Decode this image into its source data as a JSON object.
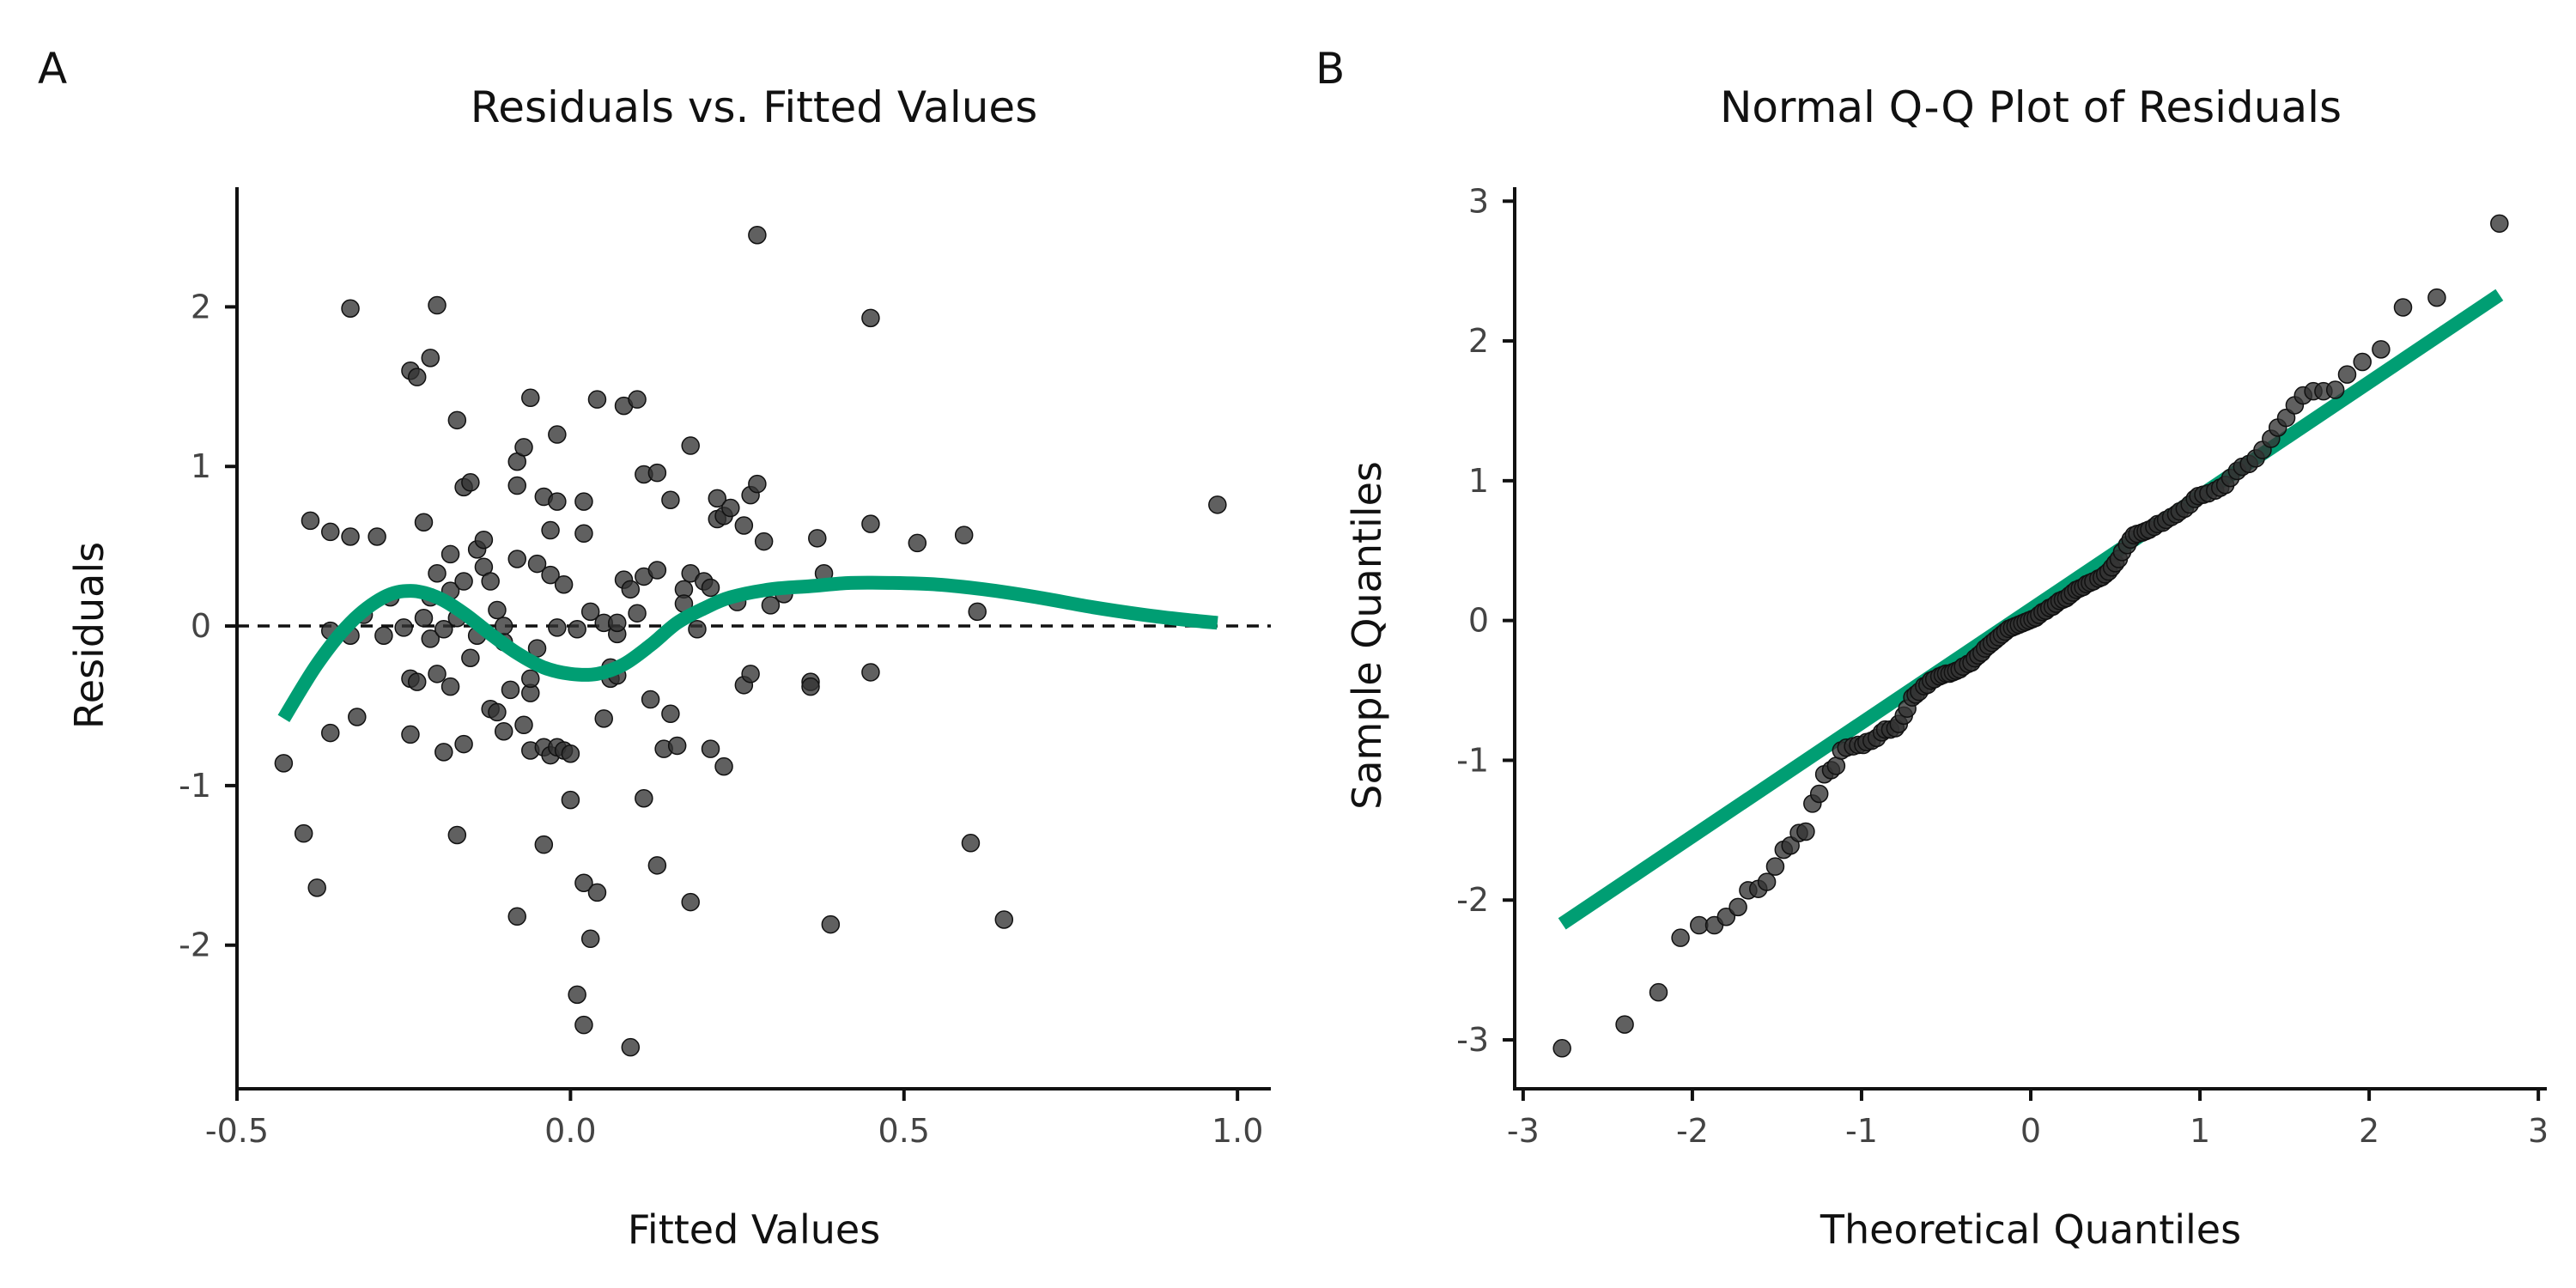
{
  "chart_data": [
    {
      "panel": "A",
      "type": "scatter",
      "title": "Residuals vs. Fitted Values",
      "xlabel": "Fitted Values",
      "ylabel": "Residuals",
      "xlim": [
        -0.5,
        1.05
      ],
      "ylim": [
        -2.9,
        2.75
      ],
      "xticks": [
        -0.5,
        0.0,
        0.5,
        1.0
      ],
      "xtick_labels": [
        "-0.5",
        "0.0",
        "0.5",
        "1.0"
      ],
      "yticks": [
        -2,
        -1,
        0,
        1,
        2
      ],
      "ytick_labels": [
        "-2",
        "-1",
        "0",
        "1",
        "2"
      ],
      "reference_line": {
        "y": 0,
        "style": "dashed"
      },
      "grid": false,
      "point_color": "#333333",
      "smooth_color": "#009E73",
      "points": [
        [
          -0.43,
          -0.86
        ],
        [
          -0.4,
          -1.3
        ],
        [
          -0.39,
          0.66
        ],
        [
          -0.38,
          -1.64
        ],
        [
          -0.36,
          -0.03
        ],
        [
          -0.36,
          -0.67
        ],
        [
          -0.36,
          0.59
        ],
        [
          -0.33,
          1.99
        ],
        [
          -0.33,
          0.56
        ],
        [
          -0.33,
          -0.06
        ],
        [
          -0.32,
          -0.57
        ],
        [
          -0.31,
          0.07
        ],
        [
          -0.29,
          0.56
        ],
        [
          -0.28,
          -0.06
        ],
        [
          -0.27,
          0.18
        ],
        [
          -0.25,
          -0.01
        ],
        [
          -0.24,
          -0.33
        ],
        [
          -0.24,
          1.6
        ],
        [
          -0.24,
          -0.68
        ],
        [
          -0.23,
          1.56
        ],
        [
          -0.23,
          -0.35
        ],
        [
          -0.22,
          0.65
        ],
        [
          -0.22,
          0.05
        ],
        [
          -0.21,
          1.68
        ],
        [
          -0.21,
          0.18
        ],
        [
          -0.21,
          -0.08
        ],
        [
          -0.2,
          2.01
        ],
        [
          -0.2,
          0.33
        ],
        [
          -0.2,
          -0.3
        ],
        [
          -0.19,
          -0.02
        ],
        [
          -0.19,
          -0.79
        ],
        [
          -0.18,
          0.22
        ],
        [
          -0.18,
          -0.38
        ],
        [
          -0.18,
          0.45
        ],
        [
          -0.17,
          1.29
        ],
        [
          -0.17,
          -1.31
        ],
        [
          -0.17,
          0.05
        ],
        [
          -0.16,
          -0.74
        ],
        [
          -0.16,
          0.28
        ],
        [
          -0.16,
          0.87
        ],
        [
          -0.15,
          0.9
        ],
        [
          -0.15,
          -0.2
        ],
        [
          -0.14,
          -0.06
        ],
        [
          -0.14,
          0.48
        ],
        [
          -0.13,
          0.37
        ],
        [
          -0.13,
          0.54
        ],
        [
          -0.12,
          0.28
        ],
        [
          -0.12,
          -0.52
        ],
        [
          -0.11,
          -0.54
        ],
        [
          -0.11,
          0.1
        ],
        [
          -0.1,
          -0.1
        ],
        [
          -0.1,
          0.0
        ],
        [
          -0.1,
          -0.66
        ],
        [
          -0.09,
          -0.4
        ],
        [
          -0.08,
          0.88
        ],
        [
          -0.08,
          -1.82
        ],
        [
          -0.08,
          0.42
        ],
        [
          -0.08,
          1.03
        ],
        [
          -0.07,
          1.12
        ],
        [
          -0.07,
          -0.62
        ],
        [
          -0.06,
          -0.42
        ],
        [
          -0.06,
          -0.78
        ],
        [
          -0.06,
          -0.33
        ],
        [
          -0.06,
          1.43
        ],
        [
          -0.05,
          0.39
        ],
        [
          -0.05,
          -0.14
        ],
        [
          -0.04,
          0.81
        ],
        [
          -0.04,
          -1.37
        ],
        [
          -0.04,
          -0.76
        ],
        [
          -0.03,
          -0.81
        ],
        [
          -0.03,
          0.6
        ],
        [
          -0.03,
          0.32
        ],
        [
          -0.02,
          -0.76
        ],
        [
          -0.02,
          -0.01
        ],
        [
          -0.02,
          1.2
        ],
        [
          -0.02,
          0.78
        ],
        [
          -0.01,
          0.26
        ],
        [
          -0.01,
          -0.78
        ],
        [
          0.0,
          -0.8
        ],
        [
          0.0,
          -1.09
        ],
        [
          0.01,
          -2.31
        ],
        [
          0.01,
          -0.02
        ],
        [
          0.02,
          0.58
        ],
        [
          0.02,
          -1.61
        ],
        [
          0.02,
          -2.5
        ],
        [
          0.02,
          0.78
        ],
        [
          0.03,
          -1.96
        ],
        [
          0.03,
          0.09
        ],
        [
          0.04,
          -1.67
        ],
        [
          0.04,
          1.42
        ],
        [
          0.05,
          -0.58
        ],
        [
          0.05,
          0.02
        ],
        [
          0.06,
          -0.33
        ],
        [
          0.06,
          -0.26
        ],
        [
          0.07,
          -0.05
        ],
        [
          0.07,
          -0.31
        ],
        [
          0.07,
          0.02
        ],
        [
          0.08,
          1.38
        ],
        [
          0.08,
          0.29
        ],
        [
          0.09,
          -2.64
        ],
        [
          0.09,
          0.23
        ],
        [
          0.1,
          1.42
        ],
        [
          0.1,
          0.08
        ],
        [
          0.11,
          0.31
        ],
        [
          0.11,
          -1.08
        ],
        [
          0.11,
          0.95
        ],
        [
          0.12,
          -0.46
        ],
        [
          0.13,
          -1.5
        ],
        [
          0.13,
          0.96
        ],
        [
          0.13,
          0.35
        ],
        [
          0.14,
          -0.77
        ],
        [
          0.15,
          0.79
        ],
        [
          0.15,
          -0.55
        ],
        [
          0.16,
          -0.75
        ],
        [
          0.17,
          0.23
        ],
        [
          0.17,
          0.14
        ],
        [
          0.18,
          1.13
        ],
        [
          0.18,
          -1.73
        ],
        [
          0.18,
          0.33
        ],
        [
          0.19,
          -0.02
        ],
        [
          0.2,
          0.28
        ],
        [
          0.21,
          -0.77
        ],
        [
          0.21,
          0.24
        ],
        [
          0.22,
          0.67
        ],
        [
          0.22,
          0.8
        ],
        [
          0.23,
          -0.88
        ],
        [
          0.23,
          0.69
        ],
        [
          0.24,
          0.74
        ],
        [
          0.25,
          0.15
        ],
        [
          0.26,
          -0.37
        ],
        [
          0.26,
          0.63
        ],
        [
          0.27,
          -0.3
        ],
        [
          0.27,
          0.82
        ],
        [
          0.28,
          0.89
        ],
        [
          0.28,
          2.45
        ],
        [
          0.29,
          0.53
        ],
        [
          0.3,
          0.13
        ],
        [
          0.32,
          0.2
        ],
        [
          0.36,
          -0.35
        ],
        [
          0.36,
          -0.38
        ],
        [
          0.37,
          0.55
        ],
        [
          0.38,
          0.33
        ],
        [
          0.39,
          -1.87
        ],
        [
          0.45,
          0.64
        ],
        [
          0.45,
          -0.29
        ],
        [
          0.45,
          1.93
        ],
        [
          0.52,
          0.52
        ],
        [
          0.59,
          0.57
        ],
        [
          0.6,
          -1.36
        ],
        [
          0.61,
          0.09
        ],
        [
          0.65,
          -1.84
        ],
        [
          0.97,
          0.76
        ]
      ],
      "smooth_line": [
        [
          -0.43,
          -0.58
        ],
        [
          -0.38,
          -0.24
        ],
        [
          -0.33,
          0.02
        ],
        [
          -0.28,
          0.18
        ],
        [
          -0.24,
          0.22
        ],
        [
          -0.2,
          0.18
        ],
        [
          -0.16,
          0.08
        ],
        [
          -0.12,
          -0.05
        ],
        [
          -0.08,
          -0.17
        ],
        [
          -0.04,
          -0.26
        ],
        [
          0.0,
          -0.3
        ],
        [
          0.04,
          -0.3
        ],
        [
          0.08,
          -0.24
        ],
        [
          0.12,
          -0.12
        ],
        [
          0.16,
          0.02
        ],
        [
          0.2,
          0.11
        ],
        [
          0.24,
          0.18
        ],
        [
          0.3,
          0.23
        ],
        [
          0.36,
          0.25
        ],
        [
          0.42,
          0.27
        ],
        [
          0.48,
          0.27
        ],
        [
          0.55,
          0.26
        ],
        [
          0.62,
          0.23
        ],
        [
          0.7,
          0.18
        ],
        [
          0.78,
          0.12
        ],
        [
          0.86,
          0.07
        ],
        [
          0.92,
          0.04
        ],
        [
          0.97,
          0.02
        ]
      ]
    },
    {
      "panel": "B",
      "type": "scatter",
      "title": "Normal Q-Q Plot of Residuals",
      "xlabel": "Theoretical Quantiles",
      "ylabel": "Sample Quantiles",
      "xlim": [
        -3.05,
        3.05
      ],
      "ylim": [
        -3.35,
        3.1
      ],
      "xticks": [
        -3,
        -2,
        -1,
        0,
        1,
        2,
        3
      ],
      "xtick_labels": [
        "-3",
        "-2",
        "-1",
        "0",
        "1",
        "2",
        "3"
      ],
      "yticks": [
        -3,
        -2,
        -1,
        0,
        1,
        2,
        3
      ],
      "ytick_labels": [
        "-3",
        "-2",
        "-1",
        "0",
        "1",
        "2",
        "3"
      ],
      "grid": false,
      "point_color": "#333333",
      "line_color": "#009E73",
      "reference_line": {
        "from": [
          -2.77,
          -2.17
        ],
        "to": [
          2.77,
          2.33
        ]
      },
      "points": [
        [
          -2.77,
          -3.06
        ],
        [
          -2.4,
          -2.89
        ],
        [
          -2.2,
          -2.66
        ],
        [
          -2.07,
          -2.27
        ],
        [
          -1.96,
          -2.18
        ],
        [
          -1.87,
          -2.18
        ],
        [
          -1.8,
          -2.12
        ],
        [
          -1.73,
          -2.05
        ],
        [
          -1.67,
          -1.93
        ],
        [
          -1.61,
          -1.92
        ],
        [
          -1.56,
          -1.87
        ],
        [
          -1.51,
          -1.76
        ],
        [
          -1.46,
          -1.64
        ],
        [
          -1.42,
          -1.61
        ],
        [
          -1.37,
          -1.52
        ],
        [
          -1.33,
          -1.51
        ],
        [
          -1.29,
          -1.31
        ],
        [
          -1.25,
          -1.24
        ],
        [
          -1.22,
          -1.1
        ],
        [
          -1.18,
          -1.07
        ],
        [
          -1.15,
          -1.04
        ],
        [
          -1.12,
          -0.93
        ],
        [
          -1.09,
          -0.91
        ],
        [
          -1.05,
          -0.9
        ],
        [
          -1.02,
          -0.89
        ],
        [
          -0.99,
          -0.89
        ],
        [
          -0.97,
          -0.87
        ],
        [
          -0.94,
          -0.86
        ],
        [
          -0.91,
          -0.84
        ],
        [
          -0.88,
          -0.8
        ],
        [
          -0.86,
          -0.78
        ],
        [
          -0.83,
          -0.78
        ],
        [
          -0.8,
          -0.77
        ],
        [
          -0.78,
          -0.74
        ],
        [
          -0.75,
          -0.68
        ],
        [
          -0.73,
          -0.63
        ],
        [
          -0.7,
          -0.55
        ],
        [
          -0.68,
          -0.53
        ],
        [
          -0.66,
          -0.51
        ],
        [
          -0.63,
          -0.47
        ],
        [
          -0.61,
          -0.46
        ],
        [
          -0.59,
          -0.43
        ],
        [
          -0.57,
          -0.42
        ],
        [
          -0.54,
          -0.4
        ],
        [
          -0.52,
          -0.39
        ],
        [
          -0.5,
          -0.38
        ],
        [
          -0.48,
          -0.38
        ],
        [
          -0.46,
          -0.37
        ],
        [
          -0.44,
          -0.36
        ],
        [
          -0.42,
          -0.35
        ],
        [
          -0.4,
          -0.33
        ],
        [
          -0.37,
          -0.31
        ],
        [
          -0.35,
          -0.3
        ],
        [
          -0.33,
          -0.27
        ],
        [
          -0.31,
          -0.25
        ],
        [
          -0.29,
          -0.23
        ],
        [
          -0.27,
          -0.2
        ],
        [
          -0.25,
          -0.18
        ],
        [
          -0.23,
          -0.16
        ],
        [
          -0.21,
          -0.14
        ],
        [
          -0.19,
          -0.12
        ],
        [
          -0.17,
          -0.1
        ],
        [
          -0.15,
          -0.08
        ],
        [
          -0.13,
          -0.06
        ],
        [
          -0.11,
          -0.05
        ],
        [
          -0.09,
          -0.04
        ],
        [
          -0.07,
          -0.03
        ],
        [
          -0.05,
          -0.02
        ],
        [
          -0.03,
          -0.01
        ],
        [
          -0.01,
          0.0
        ],
        [
          0.01,
          0.01
        ],
        [
          0.03,
          0.02
        ],
        [
          0.05,
          0.04
        ],
        [
          0.07,
          0.06
        ],
        [
          0.09,
          0.07
        ],
        [
          0.11,
          0.09
        ],
        [
          0.13,
          0.1
        ],
        [
          0.15,
          0.12
        ],
        [
          0.17,
          0.14
        ],
        [
          0.19,
          0.15
        ],
        [
          0.21,
          0.16
        ],
        [
          0.23,
          0.18
        ],
        [
          0.25,
          0.2
        ],
        [
          0.27,
          0.22
        ],
        [
          0.29,
          0.23
        ],
        [
          0.31,
          0.24
        ],
        [
          0.33,
          0.26
        ],
        [
          0.35,
          0.27
        ],
        [
          0.37,
          0.28
        ],
        [
          0.4,
          0.3
        ],
        [
          0.42,
          0.31
        ],
        [
          0.44,
          0.33
        ],
        [
          0.46,
          0.35
        ],
        [
          0.48,
          0.38
        ],
        [
          0.5,
          0.41
        ],
        [
          0.52,
          0.44
        ],
        [
          0.54,
          0.49
        ],
        [
          0.57,
          0.54
        ],
        [
          0.59,
          0.58
        ],
        [
          0.61,
          0.61
        ],
        [
          0.63,
          0.62
        ],
        [
          0.66,
          0.63
        ],
        [
          0.68,
          0.64
        ],
        [
          0.7,
          0.65
        ],
        [
          0.73,
          0.67
        ],
        [
          0.75,
          0.69
        ],
        [
          0.78,
          0.7
        ],
        [
          0.8,
          0.72
        ],
        [
          0.83,
          0.74
        ],
        [
          0.86,
          0.76
        ],
        [
          0.88,
          0.78
        ],
        [
          0.91,
          0.8
        ],
        [
          0.94,
          0.83
        ],
        [
          0.97,
          0.87
        ],
        [
          0.99,
          0.89
        ],
        [
          1.02,
          0.9
        ],
        [
          1.05,
          0.91
        ],
        [
          1.09,
          0.93
        ],
        [
          1.12,
          0.95
        ],
        [
          1.15,
          0.97
        ],
        [
          1.18,
          1.02
        ],
        [
          1.22,
          1.07
        ],
        [
          1.25,
          1.1
        ],
        [
          1.29,
          1.12
        ],
        [
          1.33,
          1.16
        ],
        [
          1.37,
          1.22
        ],
        [
          1.42,
          1.3
        ],
        [
          1.46,
          1.38
        ],
        [
          1.51,
          1.45
        ],
        [
          1.56,
          1.54
        ],
        [
          1.61,
          1.61
        ],
        [
          1.67,
          1.64
        ],
        [
          1.73,
          1.64
        ],
        [
          1.8,
          1.65
        ],
        [
          1.87,
          1.76
        ],
        [
          1.96,
          1.85
        ],
        [
          2.07,
          1.94
        ],
        [
          2.2,
          2.24
        ],
        [
          2.4,
          2.31
        ],
        [
          2.77,
          2.84
        ]
      ]
    }
  ],
  "panels": {
    "a": {
      "tag": "A",
      "title": "Residuals vs. Fitted Values",
      "xlabel": "Fitted Values",
      "ylabel": "Residuals"
    },
    "b": {
      "tag": "B",
      "title": "Normal Q-Q Plot of Residuals",
      "xlabel": "Theoretical Quantiles",
      "ylabel": "Sample Quantiles"
    }
  }
}
